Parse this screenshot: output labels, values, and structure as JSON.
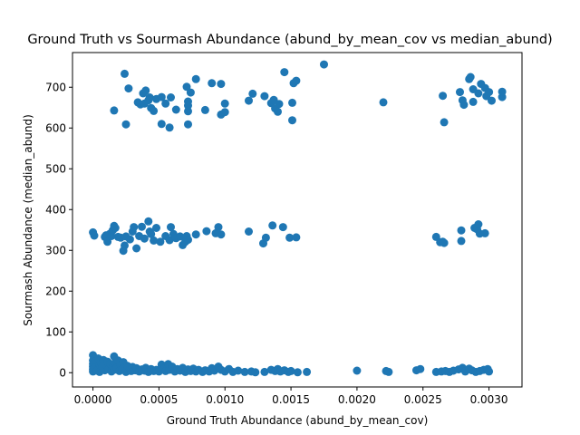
{
  "chart_data": {
    "type": "scatter",
    "title": "Ground Truth vs Sourmash Abundance (abund_by_mean_cov vs median_abund)",
    "xlabel": "Ground Truth Abundance (abund_by_mean_cov)",
    "ylabel": "Sourmash Abundance (median_abund)",
    "xlim": [
      -0.000155,
      0.00325
    ],
    "ylim": [
      -35,
      785
    ],
    "xticks": [
      0,
      0.0005,
      0.001,
      0.0015,
      0.002,
      0.0025,
      0.003
    ],
    "xtick_labels": [
      "0.0000",
      "0.0005",
      "0.0010",
      "0.0015",
      "0.0020",
      "0.0025",
      "0.0030"
    ],
    "yticks": [
      0,
      100,
      200,
      300,
      400,
      500,
      600,
      700
    ],
    "ytick_labels": [
      "0",
      "100",
      "200",
      "300",
      "400",
      "500",
      "600",
      "700"
    ],
    "grid": false,
    "color": "#1f77b4",
    "series": [
      {
        "points": [
          [
            0.00024,
            733
          ],
          [
            0.00027,
            697
          ],
          [
            0.00016,
            643
          ],
          [
            0.00025,
            609
          ],
          [
            0.00034,
            663
          ],
          [
            0.00036,
            658
          ],
          [
            0.00038,
            685
          ],
          [
            0.00039,
            660
          ],
          [
            0.0004,
            692
          ],
          [
            0.00042,
            668
          ],
          [
            0.00043,
            675
          ],
          [
            0.00044,
            649
          ],
          [
            0.00046,
            642
          ],
          [
            0.00048,
            671
          ],
          [
            0.00052,
            676
          ],
          [
            0.00052,
            610
          ],
          [
            0.00055,
            660
          ],
          [
            0.00058,
            601
          ],
          [
            0.00059,
            675
          ],
          [
            0.00063,
            645
          ],
          [
            0.00071,
            701
          ],
          [
            0.00072,
            665
          ],
          [
            0.00072,
            655
          ],
          [
            0.00072,
            641
          ],
          [
            0.00072,
            609
          ],
          [
            0.00074,
            687
          ],
          [
            0.00078,
            720
          ],
          [
            0.00085,
            644
          ],
          [
            0.0009,
            710
          ],
          [
            0.00097,
            708
          ],
          [
            0.00097,
            633
          ],
          [
            0.001,
            639
          ],
          [
            0.001,
            660
          ],
          [
            0.00118,
            667
          ],
          [
            0.00121,
            684
          ],
          [
            0.0013,
            678
          ],
          [
            0.00135,
            661
          ],
          [
            0.00137,
            669
          ],
          [
            0.00138,
            648
          ],
          [
            0.0014,
            640
          ],
          [
            0.00141,
            659
          ],
          [
            0.00145,
            737
          ],
          [
            0.00151,
            662
          ],
          [
            0.00151,
            619
          ],
          [
            0.00152,
            710
          ],
          [
            0.00154,
            716
          ],
          [
            0.00175,
            756
          ],
          [
            0.0022,
            663
          ],
          [
            0.00265,
            679
          ],
          [
            0.00266,
            614
          ],
          [
            0.00278,
            688
          ],
          [
            0.0028,
            668
          ],
          [
            0.00281,
            657
          ],
          [
            0.00285,
            720
          ],
          [
            0.00286,
            725
          ],
          [
            0.00288,
            664
          ],
          [
            0.00288,
            695
          ],
          [
            0.00292,
            685
          ],
          [
            0.00294,
            708
          ],
          [
            0.00297,
            698
          ],
          [
            0.00298,
            678
          ],
          [
            0.003,
            688
          ],
          [
            0.00302,
            667
          ],
          [
            0.0031,
            676
          ],
          [
            0.0031,
            689
          ],
          [
            0.0,
            344
          ],
          [
            1e-05,
            336
          ],
          [
            9e-05,
            333
          ],
          [
            0.0001,
            337
          ],
          [
            0.00011,
            321
          ],
          [
            0.00013,
            341
          ],
          [
            0.00014,
            335
          ],
          [
            0.00015,
            349
          ],
          [
            0.00016,
            360
          ],
          [
            0.00017,
            355
          ],
          [
            0.00019,
            333
          ],
          [
            0.00021,
            331
          ],
          [
            0.00023,
            299
          ],
          [
            0.00024,
            312
          ],
          [
            0.00025,
            334
          ],
          [
            0.00028,
            327
          ],
          [
            0.0003,
            346
          ],
          [
            0.00031,
            357
          ],
          [
            0.00033,
            305
          ],
          [
            0.00035,
            335
          ],
          [
            0.00037,
            358
          ],
          [
            0.00039,
            329
          ],
          [
            0.00042,
            371
          ],
          [
            0.00043,
            346
          ],
          [
            0.00044,
            340
          ],
          [
            0.00046,
            324
          ],
          [
            0.00048,
            355
          ],
          [
            0.00051,
            321
          ],
          [
            0.00055,
            335
          ],
          [
            0.00058,
            325
          ],
          [
            0.00059,
            357
          ],
          [
            0.00061,
            340
          ],
          [
            0.00063,
            330
          ],
          [
            0.00066,
            334
          ],
          [
            0.00068,
            313
          ],
          [
            0.0007,
            321
          ],
          [
            0.00071,
            335
          ],
          [
            0.00072,
            326
          ],
          [
            0.00078,
            339
          ],
          [
            0.00086,
            347
          ],
          [
            0.00093,
            342
          ],
          [
            0.00095,
            357
          ],
          [
            0.00097,
            339
          ],
          [
            0.00118,
            346
          ],
          [
            0.00129,
            317
          ],
          [
            0.00131,
            331
          ],
          [
            0.00136,
            361
          ],
          [
            0.00144,
            357
          ],
          [
            0.00149,
            331
          ],
          [
            0.00154,
            332
          ],
          [
            0.0026,
            333
          ],
          [
            0.00263,
            320
          ],
          [
            0.00265,
            321
          ],
          [
            0.00266,
            318
          ],
          [
            0.00279,
            349
          ],
          [
            0.00279,
            323
          ],
          [
            0.00289,
            355
          ],
          [
            0.00291,
            352
          ],
          [
            0.00292,
            364
          ],
          [
            0.00297,
            342
          ],
          [
            0.00293,
            341
          ],
          [
            0.0,
            43
          ],
          [
            0.0,
            30
          ],
          [
            0.0,
            22
          ],
          [
            0.0,
            15
          ],
          [
            0.0,
            8
          ],
          [
            0.0,
            3
          ],
          [
            2e-05,
            28
          ],
          [
            2e-05,
            12
          ],
          [
            3e-05,
            5
          ],
          [
            4e-05,
            35
          ],
          [
            5e-05,
            20
          ],
          [
            5e-05,
            2
          ],
          [
            6e-05,
            25
          ],
          [
            7e-05,
            14
          ],
          [
            8e-05,
            31
          ],
          [
            9e-05,
            6
          ],
          [
            0.0001,
            18
          ],
          [
            0.00011,
            27
          ],
          [
            0.00012,
            9
          ],
          [
            0.00013,
            22
          ],
          [
            0.00014,
            3
          ],
          [
            0.00015,
            15
          ],
          [
            0.00016,
            40
          ],
          [
            0.00016,
            7
          ],
          [
            0.00017,
            24
          ],
          [
            0.00018,
            12
          ],
          [
            0.00019,
            30
          ],
          [
            0.0002,
            4
          ],
          [
            0.00021,
            19
          ],
          [
            0.00022,
            8
          ],
          [
            0.00023,
            26
          ],
          [
            0.00024,
            13
          ],
          [
            0.00025,
            2
          ],
          [
            0.00026,
            17
          ],
          [
            0.00028,
            9
          ],
          [
            0.00029,
            4
          ],
          [
            0.0003,
            14
          ],
          [
            0.00032,
            6
          ],
          [
            0.00033,
            11
          ],
          [
            0.00035,
            3
          ],
          [
            0.00037,
            8
          ],
          [
            0.00039,
            5
          ],
          [
            0.0004,
            12
          ],
          [
            0.00042,
            2
          ],
          [
            0.00044,
            9
          ],
          [
            0.00046,
            4
          ],
          [
            0.00048,
            7
          ],
          [
            0.0005,
            3
          ],
          [
            0.00052,
            20
          ],
          [
            0.00054,
            10
          ],
          [
            0.00055,
            4
          ],
          [
            0.00057,
            21
          ],
          [
            0.00058,
            7
          ],
          [
            0.0006,
            15
          ],
          [
            0.00062,
            3
          ],
          [
            0.00064,
            9
          ],
          [
            0.00066,
            5
          ],
          [
            0.00068,
            12
          ],
          [
            0.0007,
            2
          ],
          [
            0.00072,
            8
          ],
          [
            0.00074,
            4
          ],
          [
            0.00076,
            10
          ],
          [
            0.00078,
            3
          ],
          [
            0.0008,
            7
          ],
          [
            0.00083,
            2
          ],
          [
            0.00085,
            6
          ],
          [
            0.00088,
            3
          ],
          [
            0.0009,
            11
          ],
          [
            0.00092,
            5
          ],
          [
            0.00095,
            15
          ],
          [
            0.00097,
            7
          ],
          [
            0.001,
            3
          ],
          [
            0.00103,
            9
          ],
          [
            0.00106,
            2
          ],
          [
            0.0011,
            5
          ],
          [
            0.00115,
            2
          ],
          [
            0.0012,
            3
          ],
          [
            0.00123,
            1
          ],
          [
            0.0013,
            2
          ],
          [
            0.00135,
            7
          ],
          [
            0.00138,
            4
          ],
          [
            0.0014,
            9
          ],
          [
            0.00142,
            3
          ],
          [
            0.00145,
            6
          ],
          [
            0.00148,
            2
          ],
          [
            0.0015,
            4
          ],
          [
            0.00155,
            1
          ],
          [
            0.00162,
            2
          ],
          [
            0.002,
            5
          ],
          [
            0.00222,
            4
          ],
          [
            0.00224,
            2
          ],
          [
            0.00245,
            6
          ],
          [
            0.00248,
            9
          ],
          [
            0.0026,
            2
          ],
          [
            0.00264,
            3
          ],
          [
            0.00267,
            4
          ],
          [
            0.0027,
            2
          ],
          [
            0.00273,
            5
          ],
          [
            0.00277,
            8
          ],
          [
            0.0028,
            12
          ],
          [
            0.00282,
            3
          ],
          [
            0.00285,
            10
          ],
          [
            0.00287,
            6
          ],
          [
            0.0029,
            2
          ],
          [
            0.00293,
            4
          ],
          [
            0.00296,
            7
          ],
          [
            0.00299,
            9
          ],
          [
            0.003,
            3
          ]
        ]
      }
    ]
  }
}
